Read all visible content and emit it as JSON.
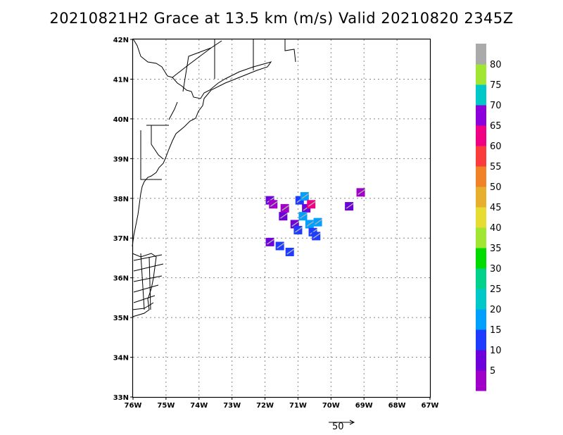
{
  "title": "20210821H2 Grace at 13.5 km (m/s) Valid 20210820 2345Z",
  "map": {
    "lat_range": [
      33,
      42
    ],
    "lon_range": [
      -76,
      -67
    ],
    "grid": "dotted",
    "lat_ticks": [
      "33N",
      "34N",
      "35N",
      "36N",
      "37N",
      "38N",
      "39N",
      "40N",
      "41N",
      "42N"
    ],
    "lon_ticks": [
      "76W",
      "75W",
      "74W",
      "73W",
      "72W",
      "71W",
      "70W",
      "69W",
      "68W",
      "67W"
    ]
  },
  "colorbar": {
    "labels": [
      "5",
      "10",
      "15",
      "20",
      "25",
      "30",
      "35",
      "40",
      "45",
      "50",
      "55",
      "60",
      "65",
      "70",
      "75",
      "80"
    ],
    "colors": [
      "#a000c8",
      "#6e00dc",
      "#1e3cff",
      "#00a0ff",
      "#00c8c8",
      "#00d28c",
      "#00dc00",
      "#a0e632",
      "#e6dc32",
      "#e6af2d",
      "#f08228",
      "#fa3c3c",
      "#f00082",
      "#8c00dc",
      "#00c8c8",
      "#a0e632",
      "#aaaaaa"
    ]
  },
  "reference_vector": {
    "value": "50"
  },
  "wind_cells": [
    {
      "lat": 37.95,
      "lon": -71.85,
      "color": "#6e00dc"
    },
    {
      "lat": 37.85,
      "lon": -71.75,
      "color": "#a000c8"
    },
    {
      "lat": 37.55,
      "lon": -71.45,
      "color": "#6e00dc"
    },
    {
      "lat": 37.75,
      "lon": -71.4,
      "color": "#a000c8"
    },
    {
      "lat": 37.35,
      "lon": -71.1,
      "color": "#6e00dc"
    },
    {
      "lat": 37.2,
      "lon": -71.0,
      "color": "#1e3cff"
    },
    {
      "lat": 37.95,
      "lon": -70.95,
      "color": "#1e3cff"
    },
    {
      "lat": 38.05,
      "lon": -70.8,
      "color": "#00a0ff"
    },
    {
      "lat": 37.75,
      "lon": -70.75,
      "color": "#6e00dc"
    },
    {
      "lat": 37.55,
      "lon": -70.85,
      "color": "#00a0ff"
    },
    {
      "lat": 37.35,
      "lon": -70.65,
      "color": "#00a0ff"
    },
    {
      "lat": 37.15,
      "lon": -70.55,
      "color": "#1e3cff"
    },
    {
      "lat": 37.05,
      "lon": -70.45,
      "color": "#1e3cff"
    },
    {
      "lat": 37.4,
      "lon": -70.4,
      "color": "#00a0ff"
    },
    {
      "lat": 37.85,
      "lon": -70.6,
      "color": "#f00082"
    },
    {
      "lat": 36.9,
      "lon": -71.85,
      "color": "#6e00dc"
    },
    {
      "lat": 36.8,
      "lon": -71.55,
      "color": "#1e3cff"
    },
    {
      "lat": 36.65,
      "lon": -71.25,
      "color": "#1e3cff"
    },
    {
      "lat": 37.8,
      "lon": -69.45,
      "color": "#6e00dc"
    },
    {
      "lat": 38.15,
      "lon": -69.1,
      "color": "#a000c8"
    }
  ]
}
